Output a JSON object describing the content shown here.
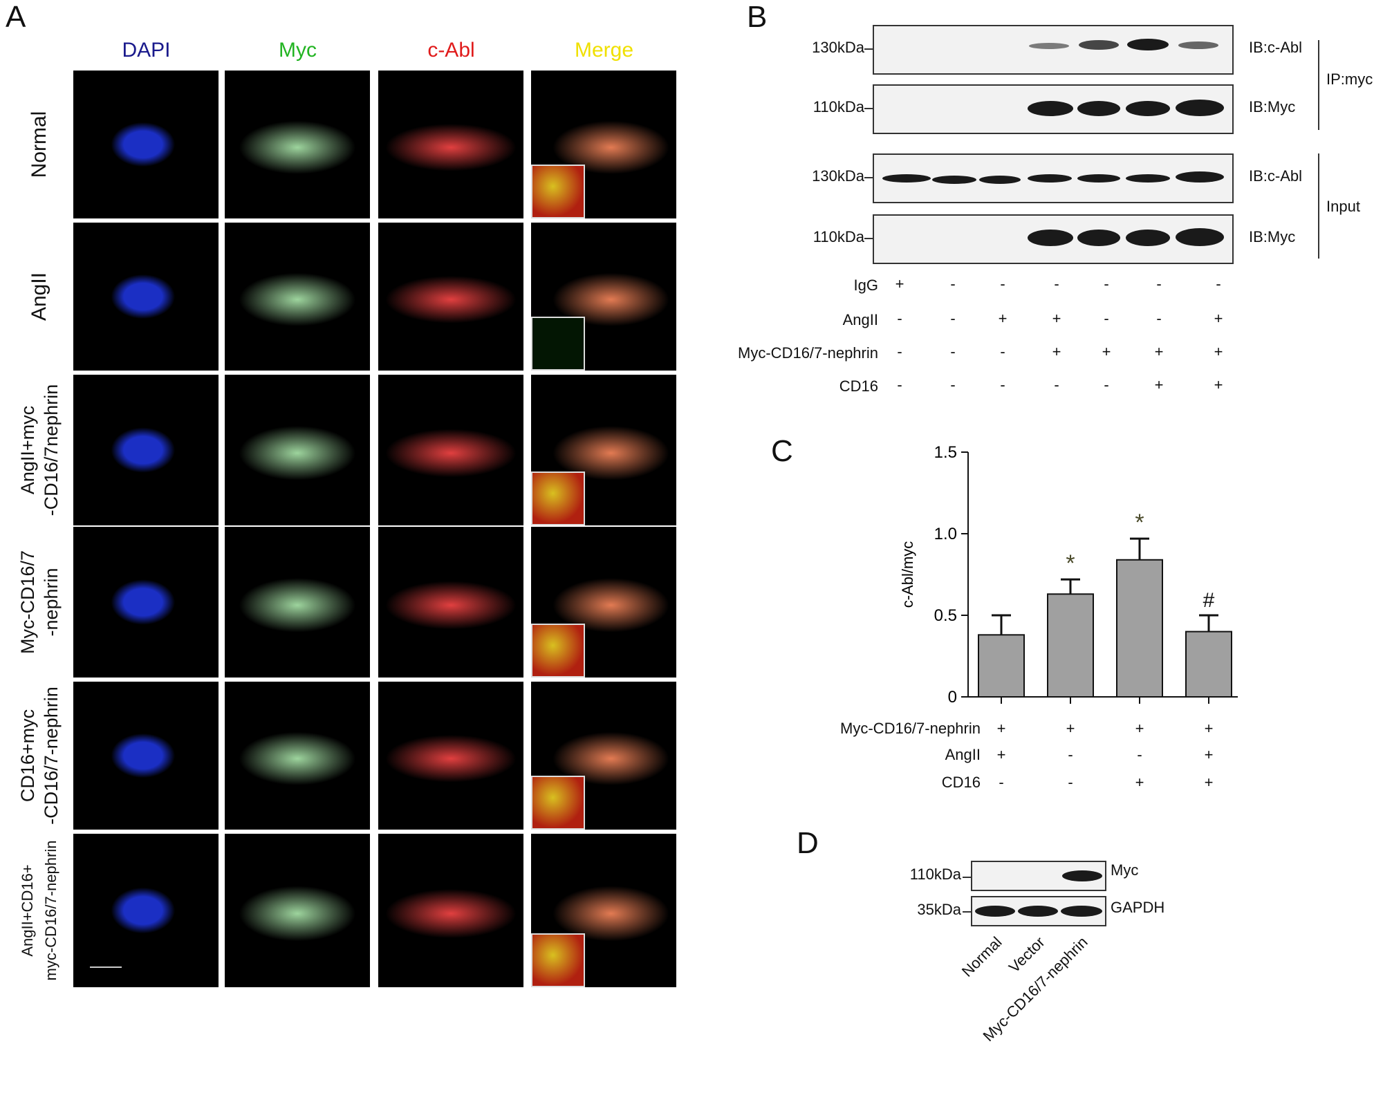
{
  "panels": {
    "a": "A",
    "b": "B",
    "c": "C",
    "d": "D"
  },
  "panelA": {
    "columns": [
      {
        "label": "DAPI",
        "color": "#1a1a8c"
      },
      {
        "label": "Myc",
        "color": "#22b422"
      },
      {
        "label": "c-Abl",
        "color": "#e01b1b"
      },
      {
        "label": "Merge",
        "color": "#f0e000"
      }
    ],
    "rows": [
      {
        "line1": "Normal",
        "line2": ""
      },
      {
        "line1": "AngII",
        "line2": ""
      },
      {
        "line1": "AngII+myc",
        "line2": "-CD16/7nephrin"
      },
      {
        "line1": "Myc-CD16/7",
        "line2": "-nephrin"
      },
      {
        "line1": "CD16+myc",
        "line2": "-CD16/7-nephrin"
      },
      {
        "line1": "AngII+CD16+",
        "line2": "myc-CD16/7-nephrin"
      }
    ]
  },
  "panelB": {
    "blots": [
      {
        "kda": "130kDa",
        "ib": "IB:c-Abl"
      },
      {
        "kda": "110kDa",
        "ib": "IB:Myc"
      },
      {
        "kda": "130kDa",
        "ib": "IB:c-Abl"
      },
      {
        "kda": "110kDa",
        "ib": "IB:Myc"
      }
    ],
    "groups": [
      "IP:myc",
      "Input"
    ],
    "conditions": [
      {
        "label": "IgG",
        "signs": [
          "+",
          "-",
          "-",
          "-",
          "-",
          "-",
          "-"
        ]
      },
      {
        "label": "AngII",
        "signs": [
          "-",
          "-",
          "+",
          "+",
          "-",
          "-",
          "+"
        ]
      },
      {
        "label": "Myc-CD16/7-nephrin",
        "signs": [
          "-",
          "-",
          "-",
          "+",
          "+",
          "+",
          "+"
        ]
      },
      {
        "label": "CD16",
        "signs": [
          "-",
          "-",
          "-",
          "-",
          "-",
          "+",
          "+"
        ]
      }
    ]
  },
  "chart_data": {
    "type": "bar",
    "ylabel": "c-Abl/myc",
    "ylim": [
      0,
      1.5
    ],
    "yticks": [
      "0",
      "0.5",
      "1.0",
      "1.5"
    ],
    "values": [
      0.38,
      0.63,
      0.84,
      0.4
    ],
    "errors": [
      0.12,
      0.09,
      0.13,
      0.1
    ],
    "annotations": [
      "",
      "*",
      "*",
      "#"
    ],
    "conditions": [
      {
        "label": "Myc-CD16/7-nephrin",
        "signs": [
          "+",
          "+",
          "+",
          "+"
        ]
      },
      {
        "label": "AngII",
        "signs": [
          "+",
          "-",
          "-",
          "+"
        ]
      },
      {
        "label": "CD16",
        "signs": [
          "-",
          "-",
          "+",
          "+"
        ]
      }
    ]
  },
  "panelD": {
    "blots": [
      {
        "kda": "110kDa",
        "label": "Myc"
      },
      {
        "kda": "35kDa",
        "label": "GAPDH"
      }
    ],
    "lanes": [
      "Normal",
      "Vector",
      "Myc-CD16/7-nephrin"
    ]
  }
}
